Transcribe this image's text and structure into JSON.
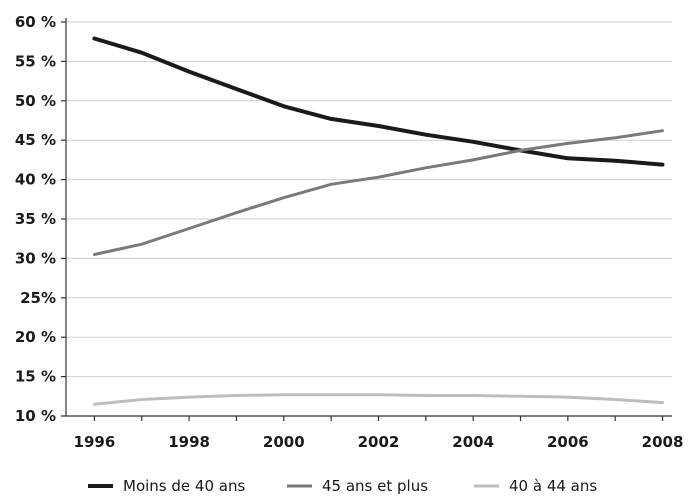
{
  "chart_data": {
    "type": "line",
    "x": [
      1996,
      1997,
      1998,
      1999,
      2000,
      2001,
      2002,
      2003,
      2004,
      2005,
      2006,
      2007,
      2008
    ],
    "x_tick_values": [
      1996,
      1998,
      2000,
      2002,
      2004,
      2006,
      2008
    ],
    "x_tick_labels": [
      "1996",
      "1998",
      "2000",
      "2002",
      "2004",
      "2006",
      "2008"
    ],
    "y_tick_values": [
      10,
      15,
      20,
      25,
      30,
      35,
      40,
      45,
      50,
      55,
      60
    ],
    "y_tick_labels": [
      "10 %",
      "15 %",
      "20 %",
      "25%",
      "30 %",
      "35 %",
      "40 %",
      "45 %",
      "50 %",
      "55 %",
      "60 %"
    ],
    "xlim": [
      1995.4,
      2008.2
    ],
    "ylim": [
      10,
      60
    ],
    "grid": true,
    "legend_position": "bottom",
    "series": [
      {
        "name": "Moins de 40 ans",
        "color": "#1a1a1a",
        "values": [
          57.9,
          56.1,
          53.7,
          51.5,
          49.3,
          47.7,
          46.8,
          45.7,
          44.8,
          43.7,
          42.7,
          42.4,
          41.9
        ]
      },
      {
        "name": "45 ans et plus",
        "color": "#7a7a7a",
        "values": [
          30.5,
          31.8,
          33.8,
          35.8,
          37.7,
          39.4,
          40.3,
          41.5,
          42.5,
          43.7,
          44.6,
          45.3,
          46.2
        ]
      },
      {
        "name": "40 à 44 ans",
        "color": "#bdbdbd",
        "values": [
          11.5,
          12.1,
          12.4,
          12.6,
          12.7,
          12.7,
          12.7,
          12.6,
          12.6,
          12.5,
          12.4,
          12.1,
          11.7
        ]
      }
    ]
  }
}
